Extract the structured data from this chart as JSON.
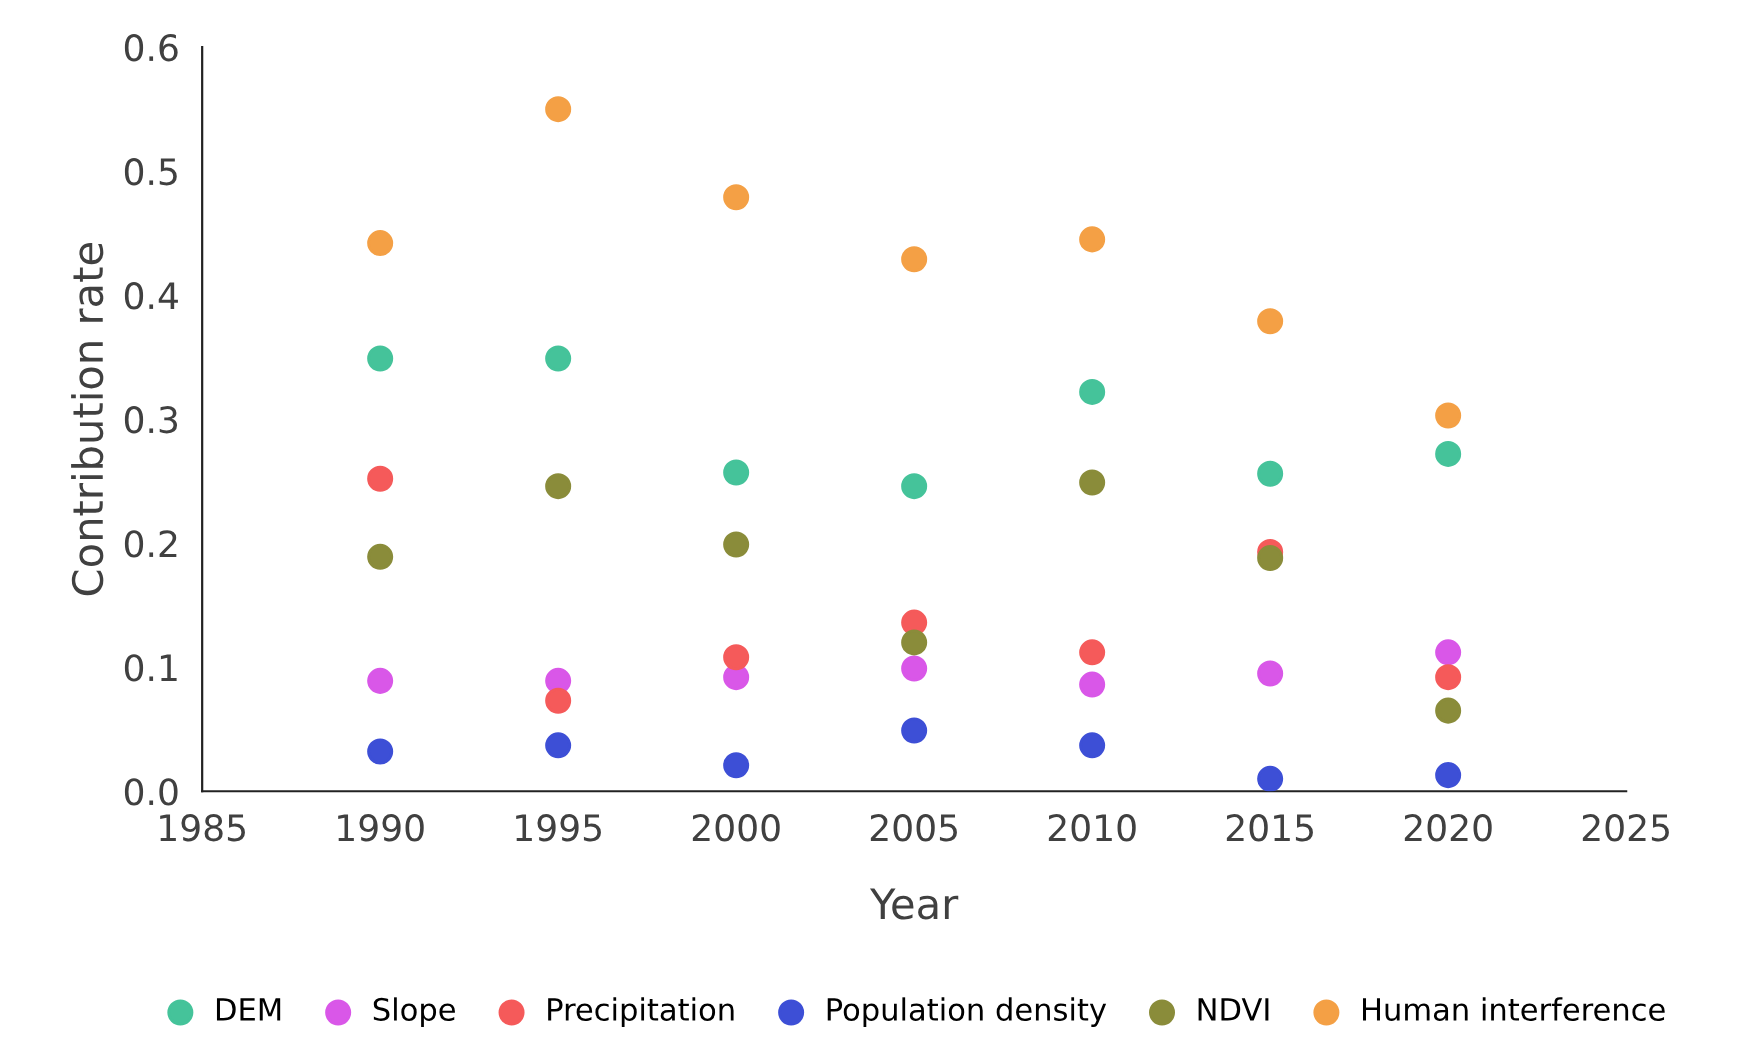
{
  "chart_data": {
    "type": "scatter",
    "xlabel": "Year",
    "ylabel": "Contribution rate",
    "x": [
      1990,
      1995,
      2000,
      2005,
      2010,
      2015,
      2020
    ],
    "series": [
      {
        "name": "DEM",
        "color": "#45c39a",
        "values": [
          0.349,
          0.349,
          0.257,
          0.246,
          0.322,
          0.256,
          0.272
        ]
      },
      {
        "name": "Slope",
        "color": "#d957e8",
        "values": [
          0.089,
          0.089,
          0.092,
          0.099,
          0.086,
          0.095,
          0.112
        ]
      },
      {
        "name": "Precipitation",
        "color": "#f55a5a",
        "values": [
          0.252,
          0.073,
          0.108,
          0.136,
          0.112,
          0.193,
          0.092
        ]
      },
      {
        "name": "Population density",
        "color": "#3d4fd6",
        "values": [
          0.032,
          0.037,
          0.021,
          0.049,
          0.037,
          0.01,
          0.013
        ]
      },
      {
        "name": "NDVI",
        "color": "#8a8c3a",
        "values": [
          0.189,
          0.246,
          0.199,
          0.12,
          0.249,
          0.188,
          0.065
        ]
      },
      {
        "name": "Human interference",
        "color": "#f4a045",
        "values": [
          0.442,
          0.55,
          0.479,
          0.429,
          0.445,
          0.379,
          0.303
        ]
      }
    ],
    "xlim": [
      1985,
      2025
    ],
    "xticks": [
      1985,
      1990,
      1995,
      2000,
      2005,
      2010,
      2015,
      2020,
      2025
    ],
    "ylim": [
      0,
      0.6
    ],
    "yticks": [
      {
        "value": 0,
        "label": "0.0"
      },
      0.1,
      0.2,
      0.3,
      0.4,
      0.5,
      0.6
    ],
    "grid": false,
    "legend": "bottom",
    "marker": "circle"
  }
}
